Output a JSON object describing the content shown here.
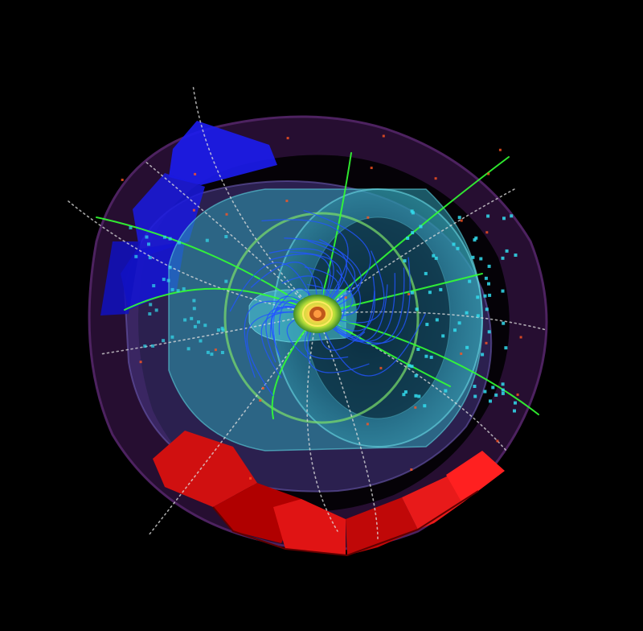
{
  "image": {
    "subject": "particle-collision-event-display",
    "background_color": "#000000"
  },
  "palette": {
    "outer_ring": "#3a1a4a",
    "inner_ring": "#2a2f6a",
    "barrel": "#2fa0b0",
    "barrel_dark": "#1c5f74",
    "blue_muon_block": "#1a1aee",
    "red_muon_block": "#ee1111",
    "green_track": "#33ff33",
    "blue_track": "#2255ff",
    "dotted_track": "#dddddd",
    "cyan_hit": "#33ddee",
    "orange_hit": "#ff5522",
    "core_yellow": "#e8e23a",
    "core_orange": "#ff9a1a"
  }
}
